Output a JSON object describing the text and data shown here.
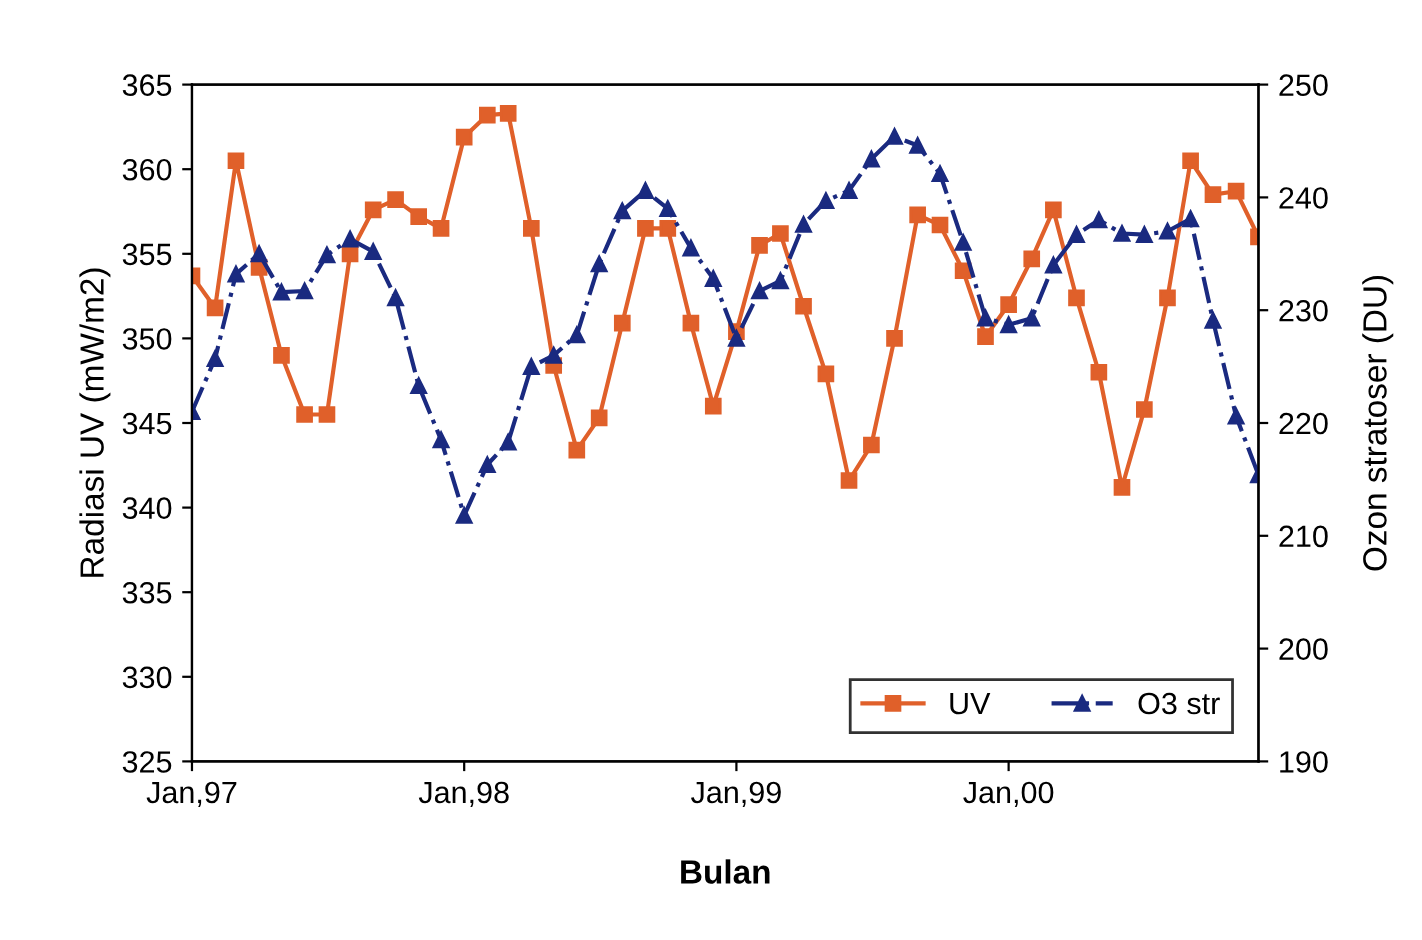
{
  "chart_data": {
    "type": "line",
    "xlabel": "Bulan",
    "ylabel": "Radiasi UV (mW/m2)",
    "y2label": "Ozon stratoser (DU)",
    "x": [
      "1997-01",
      "1997-02",
      "1997-03",
      "1997-04",
      "1997-05",
      "1997-06",
      "1997-07",
      "1997-08",
      "1997-09",
      "1997-10",
      "1997-11",
      "1997-12",
      "1998-01",
      "1998-02",
      "1998-03",
      "1998-04",
      "1998-05",
      "1998-06",
      "1998-07",
      "1998-08",
      "1998-09",
      "1998-10",
      "1998-11",
      "1998-12",
      "1999-01",
      "1999-02",
      "1999-03",
      "1999-04",
      "1999-05",
      "1999-06",
      "1999-07",
      "1999-08",
      "1999-09",
      "1999-10",
      "1999-11",
      "1999-12",
      "2000-01",
      "2000-02",
      "2000-03",
      "2000-04",
      "2000-05",
      "2000-06",
      "2000-07",
      "2000-08",
      "2000-09",
      "2000-10",
      "2000-11",
      "2000-12"
    ],
    "series": [
      {
        "name": "UV",
        "color": "#e0602a",
        "marker": "square",
        "line_style": "solid",
        "values": [
          353.7,
          351.8,
          360.5,
          354.2,
          349,
          345.5,
          345.5,
          355,
          357.6,
          358.2,
          357.2,
          356.5,
          361.9,
          363.2,
          363.3,
          356.5,
          348.4,
          343.4,
          345.3,
          350.9,
          356.5,
          356.5,
          350.9,
          346,
          350.4,
          355.5,
          356.2,
          351.9,
          347.9,
          341.6,
          343.7,
          350,
          357.3,
          356.7,
          354,
          350.1,
          352,
          354.7,
          357.6,
          352.4,
          348,
          341.2,
          345.8,
          352.4,
          360.5,
          358.5,
          358.7,
          356
        ]
      },
      {
        "name": "O3 str",
        "color": "#1a2a80",
        "marker": "triangle",
        "line_style": "dashdot",
        "axis": "y2",
        "values": [
          221,
          225.7,
          233.2,
          235,
          231.6,
          231.7,
          234.9,
          236.3,
          235.2,
          231.1,
          223.3,
          218.5,
          211.8,
          216.3,
          218.3,
          225,
          226,
          227.8,
          234.1,
          238.8,
          240.6,
          239,
          235.5,
          232.8,
          227.5,
          231.7,
          232.6,
          237.6,
          239.7,
          240.6,
          243.4,
          245.4,
          244.6,
          242.1,
          236,
          229.3,
          228.7,
          229.3,
          234,
          236.7,
          238,
          236.8,
          236.7,
          237,
          238.1,
          229.1,
          220.6,
          215.4
        ]
      }
    ],
    "xlim": [
      "1997-01",
      "2000-12"
    ],
    "xticks": [
      {
        "value": "1997-01",
        "label": "Jan,97"
      },
      {
        "value": "1998-01",
        "label": "Jan,98"
      },
      {
        "value": "1999-01",
        "label": "Jan,99"
      },
      {
        "value": "2000-01",
        "label": "Jan,00"
      }
    ],
    "ylim": [
      325,
      365
    ],
    "yticks": [
      325,
      330,
      335,
      340,
      345,
      350,
      355,
      360,
      365
    ],
    "y2lim": [
      190,
      250
    ],
    "y2ticks": [
      190,
      200,
      210,
      220,
      230,
      240,
      250
    ],
    "grid": false,
    "legend": "bottom right"
  }
}
